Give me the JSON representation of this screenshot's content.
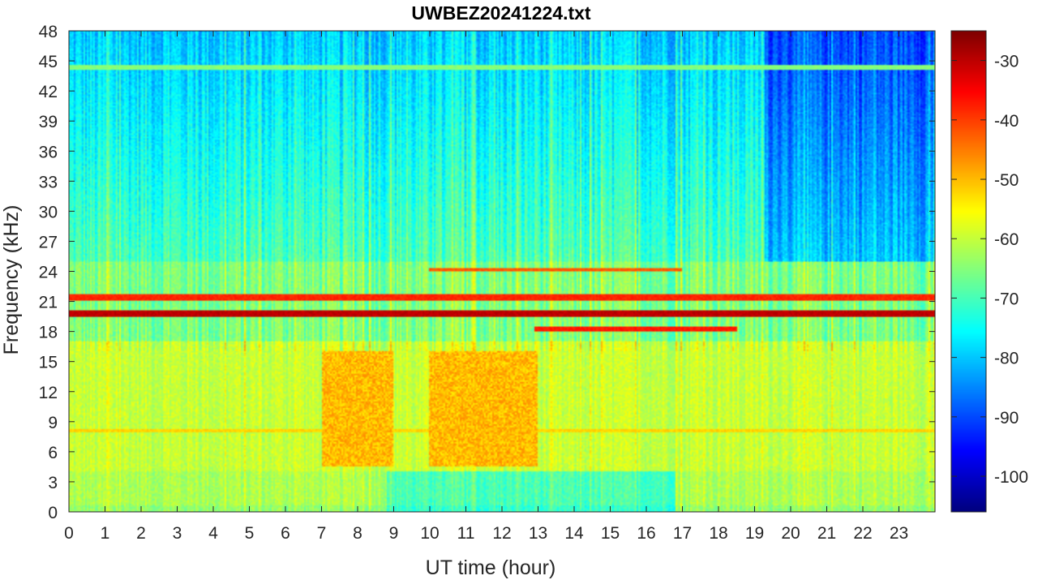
{
  "chart_data": {
    "type": "heatmap",
    "title": "UWBEZ20241224.txt",
    "xlabel": "UT time (hour)",
    "ylabel": "Frequency (kHz)",
    "xlim": [
      0,
      24
    ],
    "ylim": [
      0,
      48
    ],
    "x_ticks": [
      0,
      1,
      2,
      3,
      4,
      5,
      6,
      7,
      8,
      9,
      10,
      11,
      12,
      13,
      14,
      15,
      16,
      17,
      18,
      19,
      20,
      21,
      22,
      23
    ],
    "y_ticks": [
      0,
      3,
      6,
      9,
      12,
      15,
      18,
      21,
      24,
      27,
      30,
      33,
      36,
      39,
      42,
      45,
      48
    ],
    "colorbar": {
      "colormap": "jet",
      "clim": [
        -106,
        -25
      ],
      "ticks": [
        -100,
        -90,
        -80,
        -70,
        -60,
        -50,
        -40,
        -30
      ]
    },
    "features": [
      {
        "kind": "band",
        "y_center": 19.8,
        "y_halfwidth": 0.25,
        "x_range": [
          0,
          24
        ],
        "level": -30
      },
      {
        "kind": "band",
        "y_center": 21.4,
        "y_halfwidth": 0.2,
        "x_range": [
          0,
          24
        ],
        "level": -38
      },
      {
        "kind": "band",
        "y_center": 18.2,
        "y_halfwidth": 0.2,
        "x_range": [
          12.9,
          18.5
        ],
        "level": -37
      },
      {
        "kind": "band",
        "y_center": 24.2,
        "y_halfwidth": 0.15,
        "x_range": [
          10,
          17
        ],
        "level": -42
      },
      {
        "kind": "band",
        "y_center": 44.3,
        "y_halfwidth": 0.2,
        "x_range": [
          0,
          24
        ],
        "level": -65
      },
      {
        "kind": "band",
        "y_center": 8.1,
        "y_halfwidth": 0.12,
        "x_range": [
          0,
          24
        ],
        "level": -52
      },
      {
        "kind": "region",
        "y_range": [
          4.5,
          16
        ],
        "x_range": [
          7,
          9
        ],
        "level": -50
      },
      {
        "kind": "region",
        "y_range": [
          4.5,
          16
        ],
        "x_range": [
          10,
          13
        ],
        "level": -50
      }
    ]
  }
}
